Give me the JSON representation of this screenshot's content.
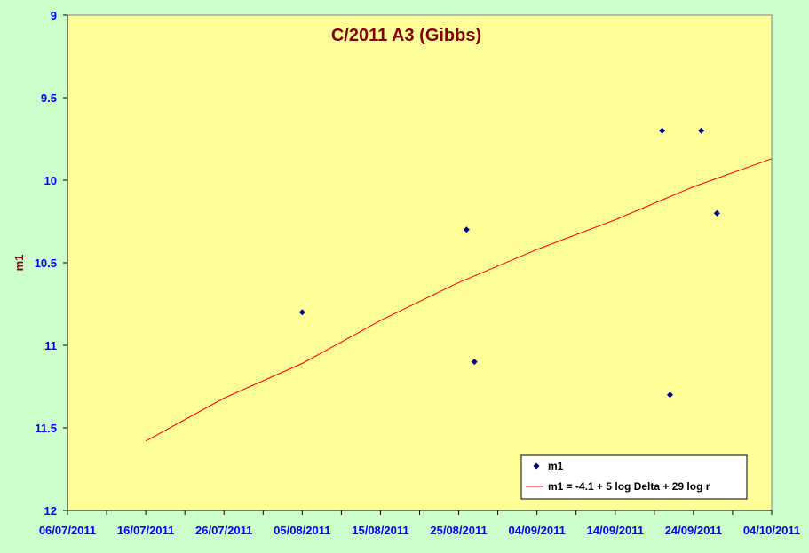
{
  "chart_data": {
    "type": "scatter",
    "title": "C/2011 A3 (Gibbs)",
    "xlabel": "",
    "ylabel": "m1",
    "x_type": "date",
    "xlim": [
      "2011-07-06",
      "2011-10-04"
    ],
    "ylim": [
      12,
      9
    ],
    "y_inverted": true,
    "x_ticks": [
      "06/07/2011",
      "16/07/2011",
      "26/07/2011",
      "05/08/2011",
      "15/08/2011",
      "25/08/2011",
      "04/09/2011",
      "14/09/2011",
      "24/09/2011",
      "04/10/2011"
    ],
    "y_ticks": [
      "9",
      "9.5",
      "10",
      "10.5",
      "11",
      "11.5",
      "12"
    ],
    "grid": false,
    "legend_position": "bottom-right",
    "series": [
      {
        "name": "m1",
        "type": "scatter",
        "color": "#000080",
        "marker": "diamond",
        "points": [
          {
            "x": "2011-08-05",
            "y": 10.8
          },
          {
            "x": "2011-08-26",
            "y": 10.3
          },
          {
            "x": "2011-08-27",
            "y": 11.1
          },
          {
            "x": "2011-09-20",
            "y": 9.7
          },
          {
            "x": "2011-09-21",
            "y": 11.3
          },
          {
            "x": "2011-09-25",
            "y": 9.7
          },
          {
            "x": "2011-09-27",
            "y": 10.2
          }
        ]
      },
      {
        "name": "m1 = -4.1 + 5 log Delta + 29 log r",
        "type": "line",
        "color": "#ff0000",
        "points": [
          {
            "x": "2011-07-16",
            "y": 11.58
          },
          {
            "x": "2011-07-26",
            "y": 11.32
          },
          {
            "x": "2011-08-05",
            "y": 11.11
          },
          {
            "x": "2011-08-15",
            "y": 10.85
          },
          {
            "x": "2011-08-25",
            "y": 10.62
          },
          {
            "x": "2011-09-04",
            "y": 10.42
          },
          {
            "x": "2011-09-14",
            "y": 10.24
          },
          {
            "x": "2011-09-24",
            "y": 10.04
          },
          {
            "x": "2011-10-04",
            "y": 9.87
          }
        ]
      }
    ]
  },
  "colors": {
    "page_background": "#ccffcc",
    "plot_background": "#ffff99",
    "axis_labels": "#0000ff",
    "title": "#800000",
    "marker": "#000080",
    "fit_line": "#ff0000"
  }
}
